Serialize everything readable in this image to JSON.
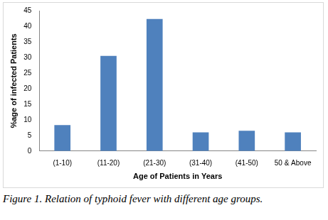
{
  "chart_data": {
    "type": "bar",
    "caption": "Figure 1. Relation of typhoid fever with different age groups.",
    "x_label": "Age of Patients in Years",
    "y_label": "%age of infected Patients",
    "categories": [
      "(1-10)",
      "(11-20)",
      "(21-30)",
      "(31-40)",
      "(41-50)",
      "50 & Above"
    ],
    "values": [
      8.3,
      30.5,
      42.3,
      6,
      6.5,
      6
    ],
    "color": "#4f81bd",
    "ylim": [
      0,
      45
    ],
    "yticks": [
      0,
      5,
      10,
      15,
      20,
      25,
      30,
      35,
      40,
      45
    ],
    "grid": false
  }
}
